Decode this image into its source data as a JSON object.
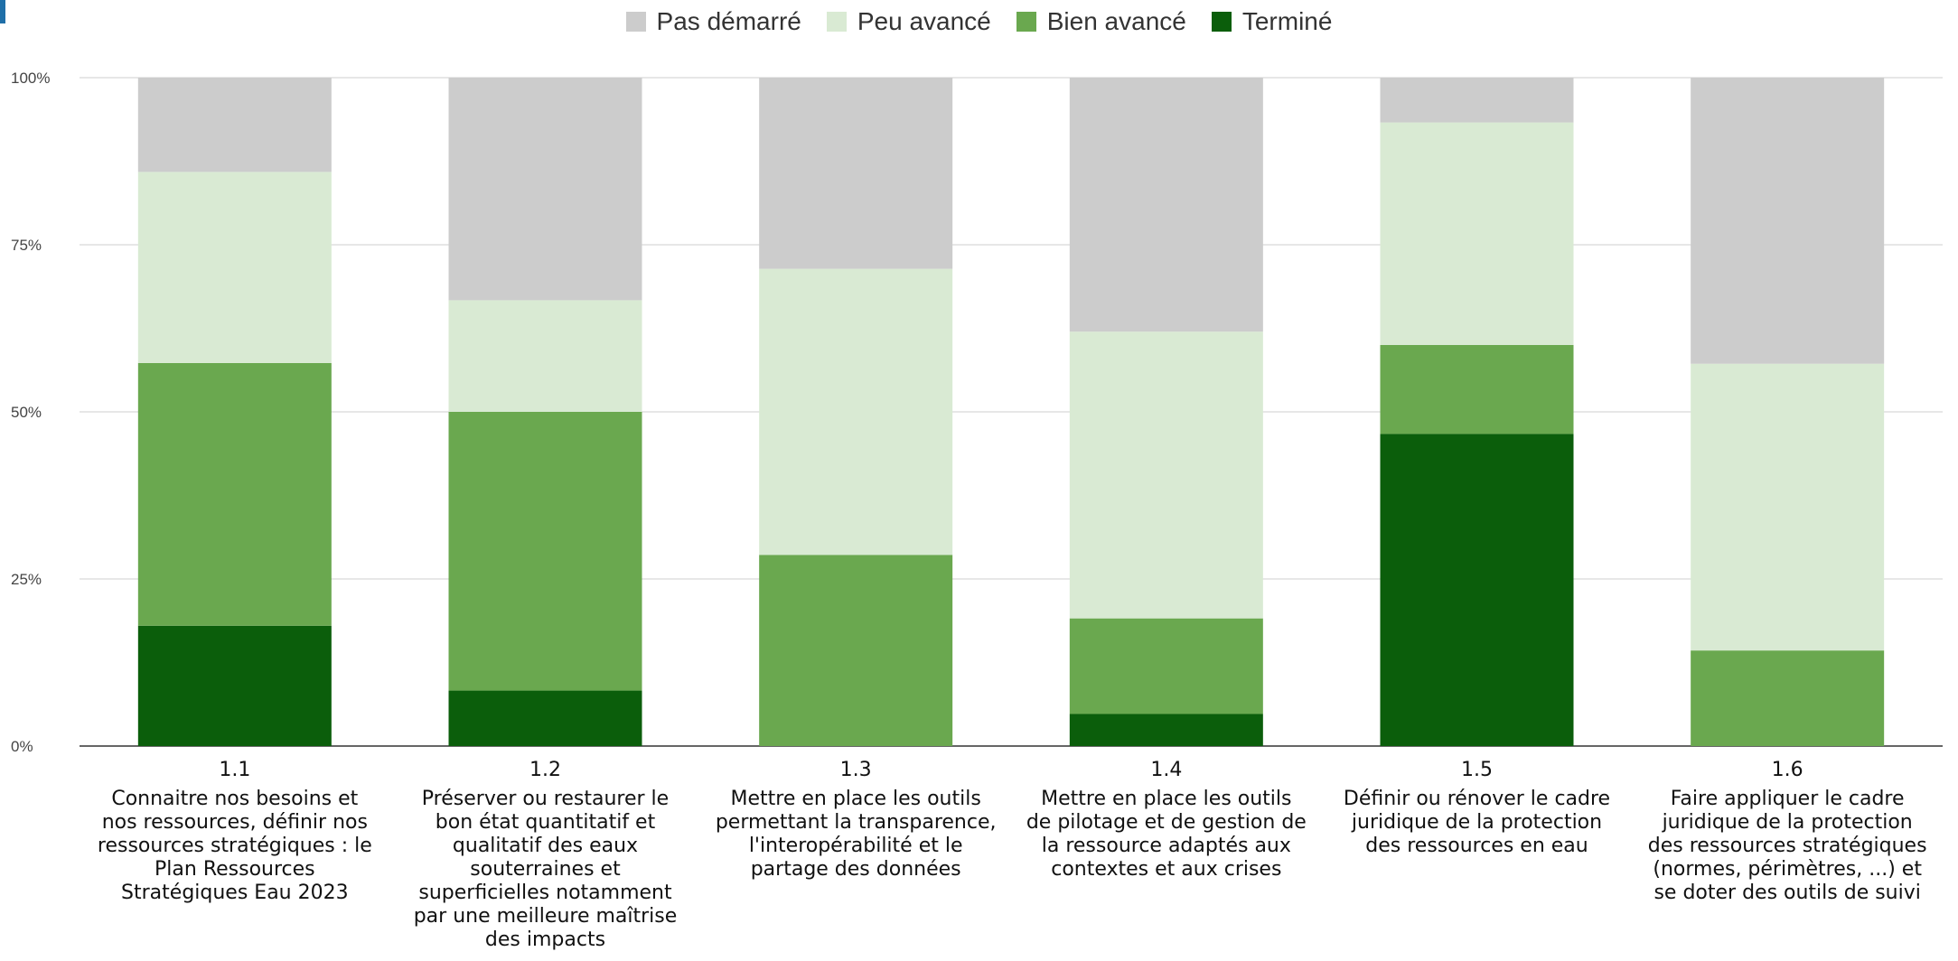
{
  "chart_data": {
    "type": "bar",
    "stacked": true,
    "percent": true,
    "ylim": [
      0,
      100
    ],
    "yticks": [
      0,
      25,
      50,
      75,
      100
    ],
    "ytick_labels": [
      "0%",
      "25%",
      "50%",
      "75%",
      "100%"
    ],
    "grid": true,
    "legend_position": "top-center",
    "categories": [
      {
        "code": "1.1",
        "lines": [
          "Connaitre nos besoins et",
          "nos ressources, définir nos",
          "ressources stratégiques : le",
          "Plan Ressources",
          "Stratégiques Eau 2023"
        ]
      },
      {
        "code": "1.2",
        "lines": [
          "Préserver ou restaurer le",
          "bon état quantitatif et",
          "qualitatif des eaux",
          "souterraines et",
          "superficielles notamment",
          "par une meilleure maîtrise",
          "des impacts"
        ]
      },
      {
        "code": "1.3",
        "lines": [
          "Mettre en place les outils",
          "permettant la transparence,",
          "l'interopérabilité et le",
          "partage des données"
        ]
      },
      {
        "code": "1.4",
        "lines": [
          "Mettre en place les outils",
          "de pilotage et de gestion de",
          "la ressource adaptés aux",
          "contextes et aux crises"
        ]
      },
      {
        "code": "1.5",
        "lines": [
          "Définir ou rénover le cadre",
          "juridique de la protection",
          "des ressources en eau"
        ]
      },
      {
        "code": "1.6",
        "lines": [
          "Faire appliquer le cadre",
          "juridique de la protection",
          "des ressources stratégiques",
          "(normes, périmètres, ...) et",
          "se doter des outils de suivi"
        ]
      }
    ],
    "series": [
      {
        "name": "Terminé",
        "color": "#0b5e0b",
        "values": [
          18,
          8.3,
          0,
          4.8,
          46.7,
          0
        ]
      },
      {
        "name": "Bien avancé",
        "color": "#6aa84f",
        "values": [
          39.3,
          41.7,
          28.6,
          14.3,
          13.3,
          14.3
        ]
      },
      {
        "name": "Peu avancé",
        "color": "#d9ead3",
        "values": [
          28.6,
          16.7,
          42.8,
          42.9,
          33.3,
          42.9
        ]
      },
      {
        "name": "Pas démarré",
        "color": "#cccccc",
        "values": [
          14.1,
          33.3,
          28.6,
          38,
          6.7,
          42.8
        ]
      }
    ],
    "legend_order": [
      "Pas démarré",
      "Peu avancé",
      "Bien avancé",
      "Terminé"
    ]
  }
}
